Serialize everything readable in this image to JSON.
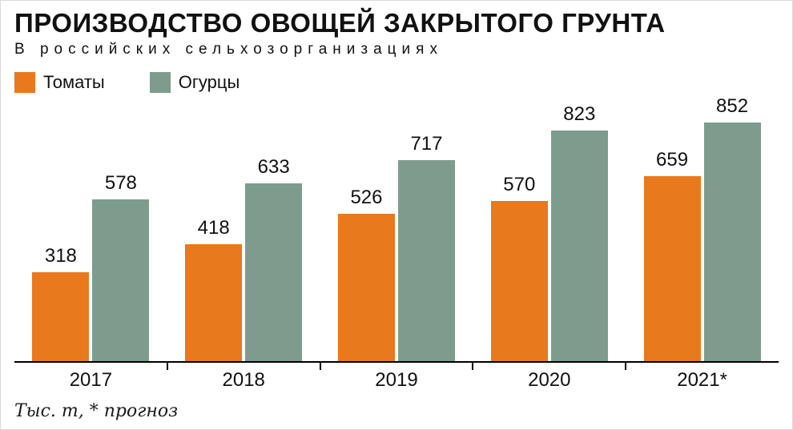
{
  "title": "ПРОИЗВОДСТВО ОВОЩЕЙ ЗАКРЫТОГО ГРУНТА",
  "subtitle": "В российских сельхозорганизациях",
  "footnote": "Тыс. т, * прогноз",
  "legend": [
    {
      "label": "Томаты",
      "color": "#E8791D"
    },
    {
      "label": "Огурцы",
      "color": "#7D9C8D"
    }
  ],
  "chart_data": {
    "type": "bar",
    "title": "ПРОИЗВОДСТВО ОВОЩЕЙ ЗАКРЫТОГО ГРУНТА",
    "subtitle": "В российских сельхозорганизациях",
    "unit_note": "Тыс. т, * прогноз",
    "categories": [
      "2017",
      "2018",
      "2019",
      "2020",
      "2021*"
    ],
    "series": [
      {
        "name": "Томаты",
        "color": "#E8791D",
        "values": [
          318,
          418,
          526,
          570,
          659
        ]
      },
      {
        "name": "Огурцы",
        "color": "#7D9C8D",
        "values": [
          578,
          633,
          717,
          823,
          852
        ]
      }
    ],
    "ylim": [
      0,
      900
    ],
    "grid": false,
    "legend_position": "top-left",
    "value_labels": "above-bars"
  }
}
